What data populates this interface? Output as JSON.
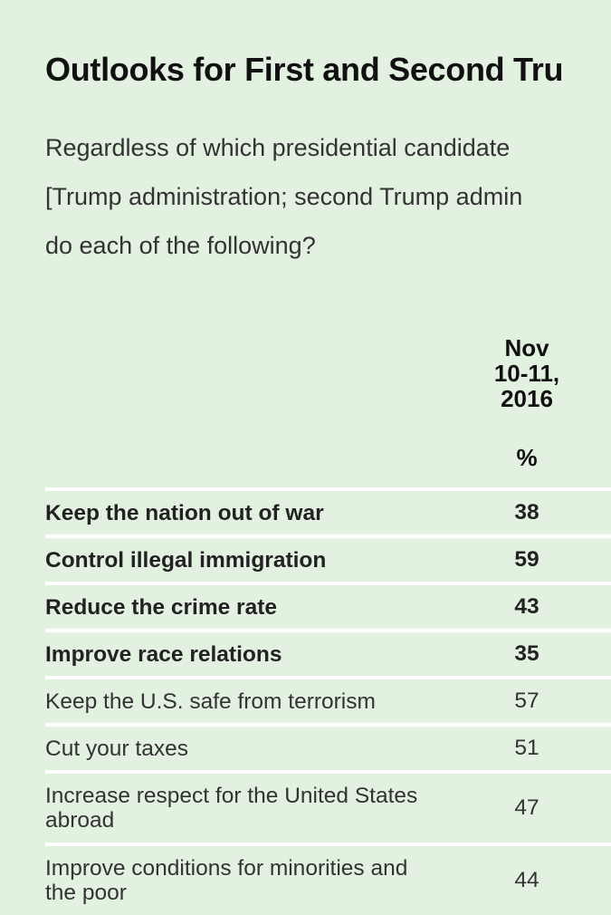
{
  "title": "Outlooks for First and Second Tru",
  "subtitle_lines": [
    "Regardless of which presidential candidate",
    "[Trump administration; second Trump admin",
    "do each of the following?"
  ],
  "table": {
    "column_header": [
      "Nov",
      "10-11,",
      "2016"
    ],
    "unit": "%",
    "rows": [
      {
        "label": "Keep the nation out of war",
        "value": "38",
        "bold": true
      },
      {
        "label": "Control illegal immigration",
        "value": "59",
        "bold": true
      },
      {
        "label": "Reduce the crime rate",
        "value": "43",
        "bold": true
      },
      {
        "label": "Improve race relations",
        "value": "35",
        "bold": true
      },
      {
        "label": "Keep the U.S. safe from terrorism",
        "value": "57",
        "bold": false
      },
      {
        "label": "Cut your taxes",
        "value": "51",
        "bold": false
      },
      {
        "label": "Increase respect for the United States abroad",
        "value": "47",
        "bold": false
      },
      {
        "label": "Improve conditions for minorities and the poor",
        "value": "44",
        "bold": false
      }
    ]
  },
  "colors": {
    "background": "#e3f1e1",
    "divider": "#ffffff",
    "text": "#1f1f1f"
  }
}
